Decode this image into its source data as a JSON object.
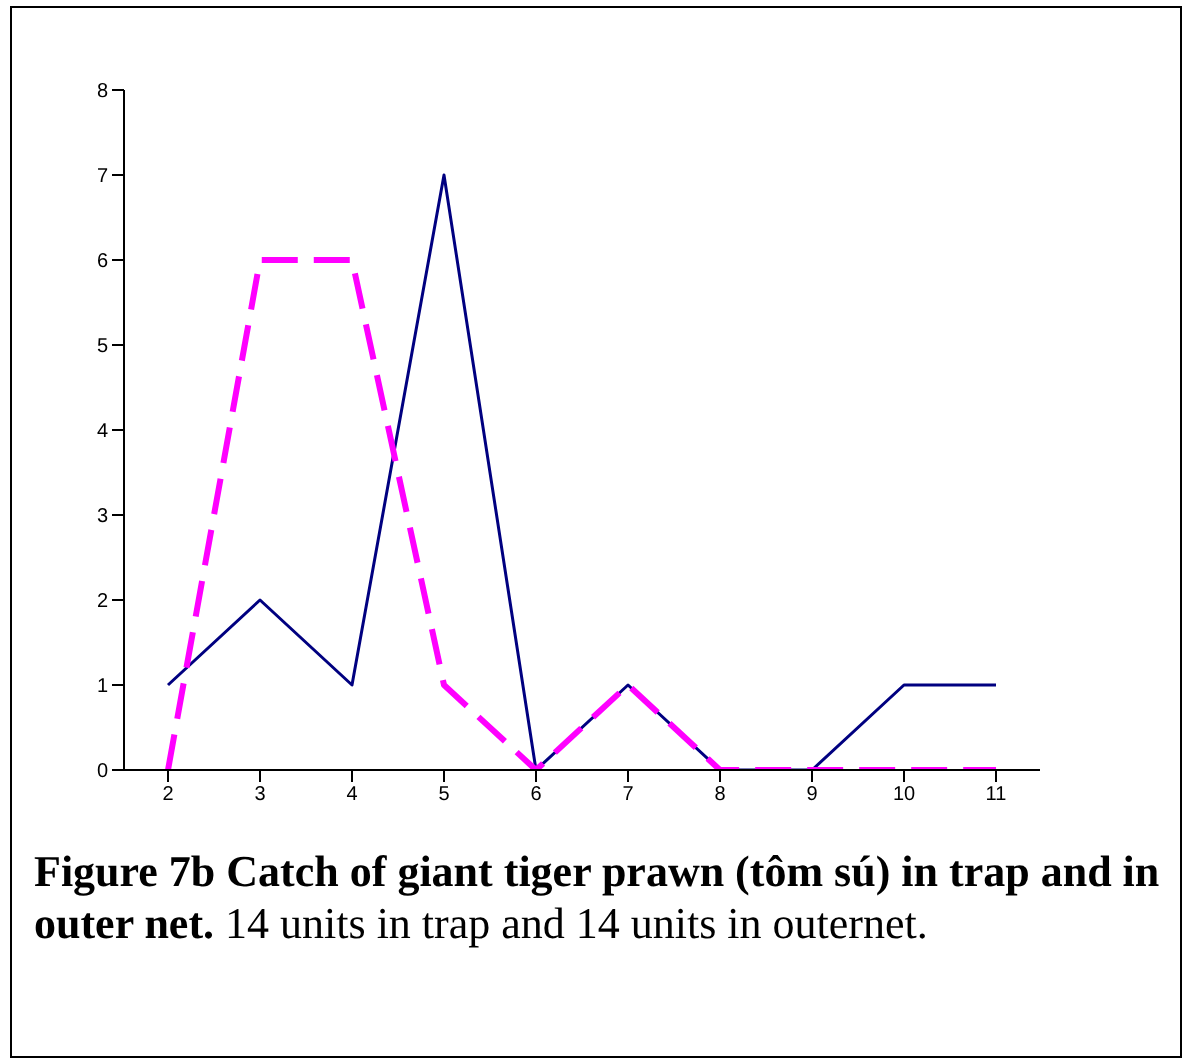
{
  "chart_data": {
    "type": "line",
    "title": "Figure 7b Catch of giant tiger prawn (tôm sú) in trap and in outer net.",
    "annotations": [
      "14 units in trap and 14 units in outernet."
    ],
    "categories": [
      "2",
      "3",
      "4",
      "5",
      "6",
      "7",
      "8",
      "9",
      "10",
      "11"
    ],
    "series": [
      {
        "color": "#000080",
        "line_style": "solid",
        "values": [
          1,
          2,
          1,
          7,
          0,
          1,
          0,
          0,
          1,
          1
        ]
      },
      {
        "color": "#ff00ff",
        "line_style": "dashed",
        "values": [
          0,
          6,
          6,
          1,
          0,
          1,
          0,
          0,
          0,
          0
        ]
      }
    ],
    "ylim": [
      0,
      8
    ],
    "yticks": [
      0,
      1,
      2,
      3,
      4,
      5,
      6,
      7,
      8
    ],
    "grid": false,
    "legend": false,
    "marker": "none"
  }
}
